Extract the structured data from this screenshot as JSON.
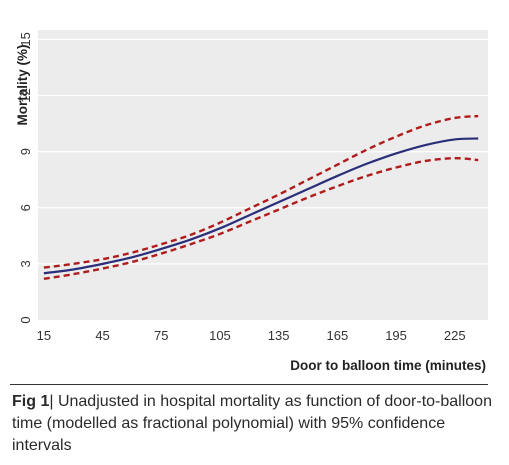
{
  "chart_data": {
    "type": "line",
    "xlabel": "Door to balloon time (minutes)",
    "ylabel": "Mortality (%)",
    "xlim": [
      12,
      242
    ],
    "ylim": [
      0,
      15.5
    ],
    "x_ticks": [
      15,
      45,
      75,
      105,
      135,
      165,
      195,
      225
    ],
    "y_ticks": [
      0,
      3,
      6,
      9,
      12,
      15
    ],
    "grid": "horizontal",
    "series": [
      {
        "role": "estimate",
        "style": "solid",
        "color": "#2b2f7a",
        "x": [
          15,
          30,
          45,
          60,
          75,
          90,
          105,
          120,
          135,
          150,
          165,
          180,
          195,
          210,
          225,
          237
        ],
        "y": [
          2.5,
          2.7,
          3.0,
          3.35,
          3.8,
          4.3,
          4.9,
          5.6,
          6.3,
          7.0,
          7.7,
          8.35,
          8.9,
          9.35,
          9.65,
          9.7
        ]
      },
      {
        "role": "upper-95-ci",
        "style": "dashed",
        "color": "#b01c1c",
        "x": [
          15,
          30,
          45,
          60,
          75,
          90,
          105,
          120,
          135,
          150,
          165,
          180,
          195,
          210,
          225,
          237
        ],
        "y": [
          2.8,
          3.0,
          3.25,
          3.6,
          4.05,
          4.55,
          5.2,
          5.95,
          6.7,
          7.5,
          8.3,
          9.1,
          9.8,
          10.4,
          10.8,
          10.9
        ]
      },
      {
        "role": "lower-95-ci",
        "style": "dashed",
        "color": "#b01c1c",
        "x": [
          15,
          30,
          45,
          60,
          75,
          90,
          105,
          120,
          135,
          150,
          165,
          180,
          195,
          210,
          225,
          237
        ],
        "y": [
          2.2,
          2.45,
          2.75,
          3.1,
          3.55,
          4.05,
          4.6,
          5.25,
          5.9,
          6.55,
          7.15,
          7.7,
          8.15,
          8.5,
          8.65,
          8.55
        ]
      }
    ]
  },
  "caption": {
    "label": "Fig 1",
    "separator": "|",
    "text": " Unadjusted in hospital mortality as function of door-to-balloon time (modelled as fractional polynomial) with 95% confidence intervals"
  },
  "colors": {
    "plot_background": "#ececec",
    "gridline": "#ffffff",
    "estimate_line": "#2b2f7a",
    "ci_line": "#b01c1c"
  }
}
